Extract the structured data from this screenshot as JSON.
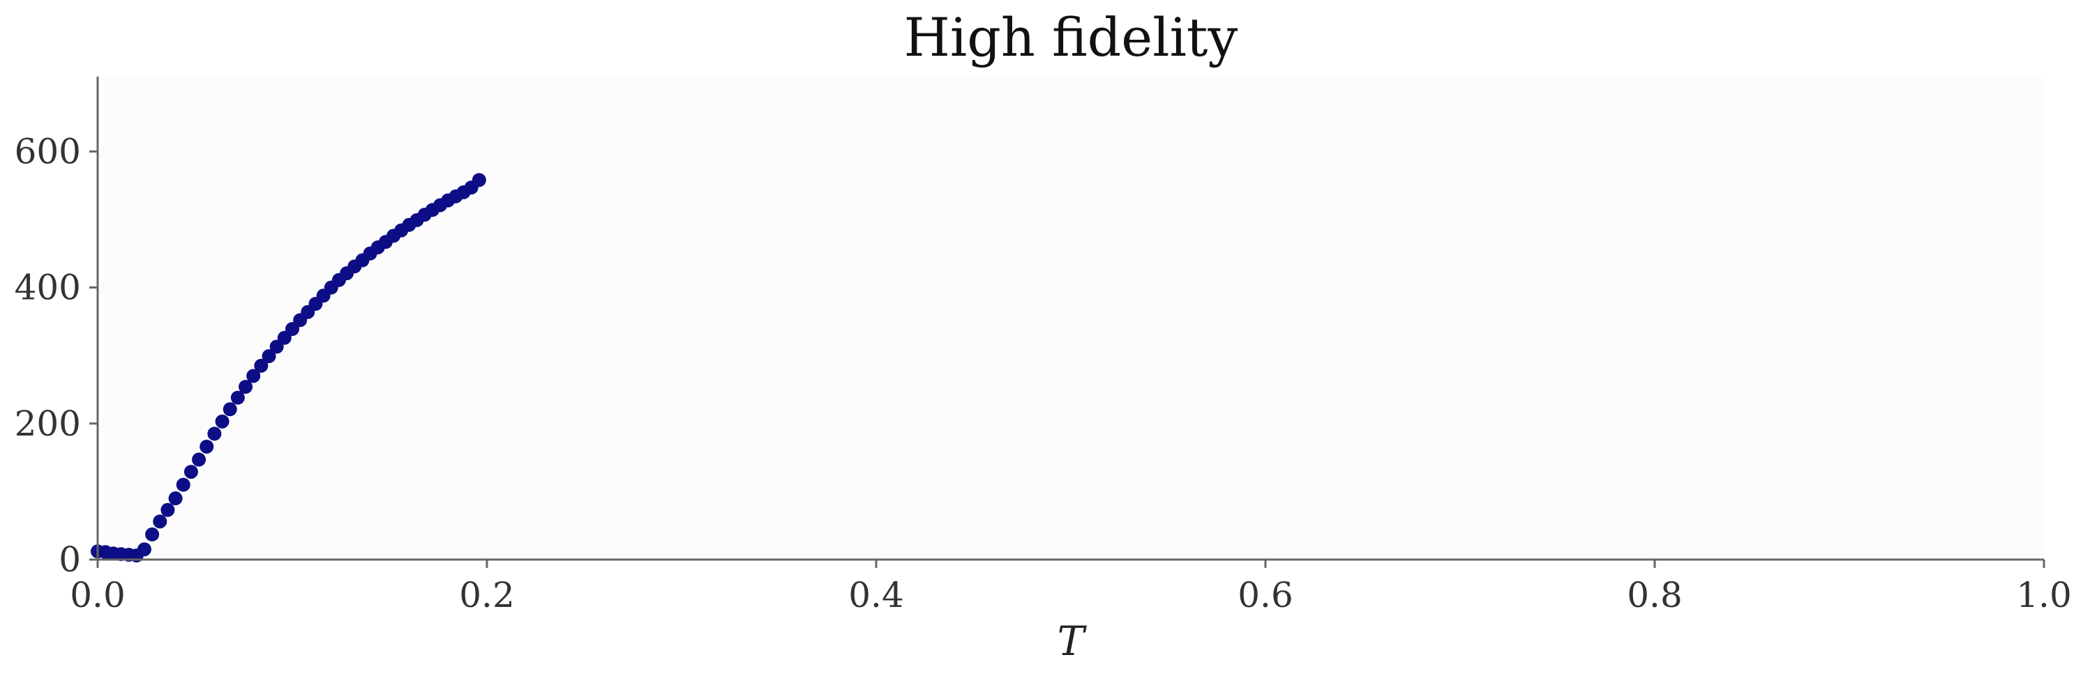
{
  "chart_data": {
    "type": "scatter",
    "title": "High fidelity",
    "xlabel": "T",
    "ylabel": "",
    "xlim": [
      0.0,
      1.0
    ],
    "ylim": [
      0,
      710
    ],
    "xticks": [
      0.0,
      0.2,
      0.4,
      0.6,
      0.8,
      1.0
    ],
    "xtick_labels": [
      "0.0",
      "0.2",
      "0.4",
      "0.6",
      "0.8",
      "1.0"
    ],
    "yticks": [
      0,
      200,
      400,
      600
    ],
    "ytick_labels": [
      "0",
      "200",
      "400",
      "600"
    ],
    "grid": false,
    "colors": {
      "marker": "#0d0d85",
      "plot_background": "#fcfcfc"
    },
    "series": [
      {
        "x": [
          0.0,
          0.004,
          0.008,
          0.012,
          0.016,
          0.02,
          0.024,
          0.028,
          0.032,
          0.036,
          0.04,
          0.044,
          0.048,
          0.052,
          0.056,
          0.06,
          0.064,
          0.068,
          0.072,
          0.076,
          0.08,
          0.084,
          0.088,
          0.092,
          0.096,
          0.1,
          0.104,
          0.108,
          0.112,
          0.116,
          0.12,
          0.124,
          0.128,
          0.132,
          0.136,
          0.14,
          0.144,
          0.148,
          0.152,
          0.156,
          0.16,
          0.164,
          0.168,
          0.172,
          0.176,
          0.18,
          0.184,
          0.188,
          0.192,
          0.196
        ],
        "y": [
          12,
          11,
          9,
          8,
          7,
          6,
          15,
          37,
          56,
          73,
          90,
          110,
          129,
          147,
          166,
          185,
          203,
          221,
          238,
          254,
          270,
          285,
          299,
          313,
          326,
          339,
          352,
          364,
          376,
          388,
          400,
          411,
          421,
          431,
          440,
          450,
          459,
          467,
          476,
          484,
          492,
          499,
          507,
          514,
          521,
          528,
          534,
          540,
          547,
          558
        ]
      }
    ]
  }
}
